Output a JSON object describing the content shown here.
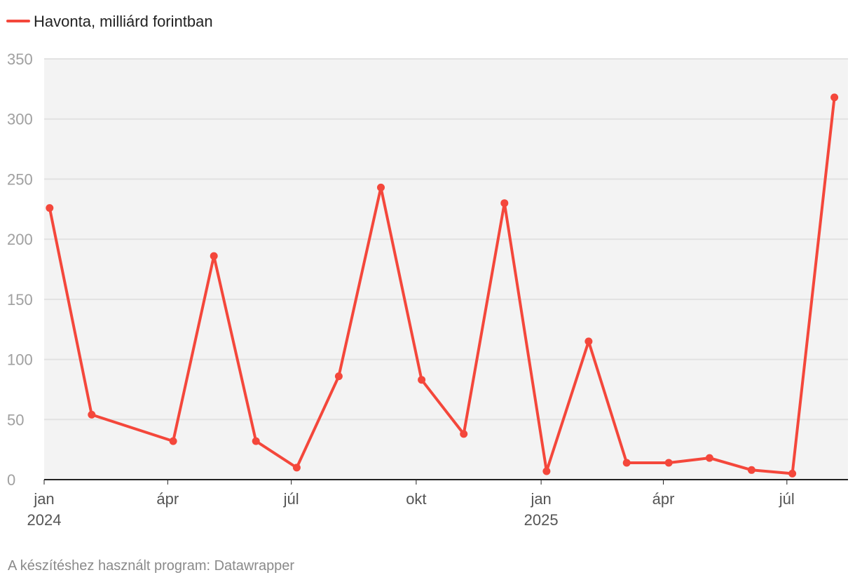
{
  "chart_data": {
    "type": "line",
    "title": "",
    "series": [
      {
        "name": "Havonta, milliárd forintban",
        "color": "#f4473b",
        "points": [
          {
            "x": "2024-01-05",
            "y": 226
          },
          {
            "x": "2024-02-05",
            "y": 54
          },
          {
            "x": "2024-04-05",
            "y": 32
          },
          {
            "x": "2024-05-05",
            "y": 186
          },
          {
            "x": "2024-06-05",
            "y": 32
          },
          {
            "x": "2024-07-05",
            "y": 10
          },
          {
            "x": "2024-08-05",
            "y": 86
          },
          {
            "x": "2024-09-05",
            "y": 243
          },
          {
            "x": "2024-10-05",
            "y": 83
          },
          {
            "x": "2024-11-05",
            "y": 38
          },
          {
            "x": "2024-12-05",
            "y": 230
          },
          {
            "x": "2025-01-05",
            "y": 7
          },
          {
            "x": "2025-02-05",
            "y": 115
          },
          {
            "x": "2025-03-05",
            "y": 14
          },
          {
            "x": "2025-04-05",
            "y": 14
          },
          {
            "x": "2025-05-05",
            "y": 18
          },
          {
            "x": "2025-06-05",
            "y": 8
          },
          {
            "x": "2025-07-05",
            "y": 5
          },
          {
            "x": "2025-08-05",
            "y": 318
          }
        ]
      }
    ],
    "y_ticks": [
      "0",
      "50",
      "100",
      "150",
      "200",
      "250",
      "300",
      "350"
    ],
    "ylim": [
      0,
      350
    ],
    "x_range": [
      "2024-01-01",
      "2025-08-15"
    ],
    "x_ticks": [
      {
        "date": "2024-01-01",
        "label": "jan",
        "year": "2024"
      },
      {
        "date": "2024-04-01",
        "label": "ápr",
        "year": ""
      },
      {
        "date": "2024-07-01",
        "label": "júl",
        "year": ""
      },
      {
        "date": "2024-10-01",
        "label": "okt",
        "year": ""
      },
      {
        "date": "2025-01-01",
        "label": "jan",
        "year": "2025"
      },
      {
        "date": "2025-04-01",
        "label": "ápr",
        "year": ""
      },
      {
        "date": "2025-07-01",
        "label": "júl",
        "year": ""
      }
    ],
    "grid": true,
    "legend": "top-left",
    "plot_background": "#f3f3f3",
    "gridline_color": "#e2e2e2"
  },
  "footer": "A készítéshez használt program: Datawrapper"
}
